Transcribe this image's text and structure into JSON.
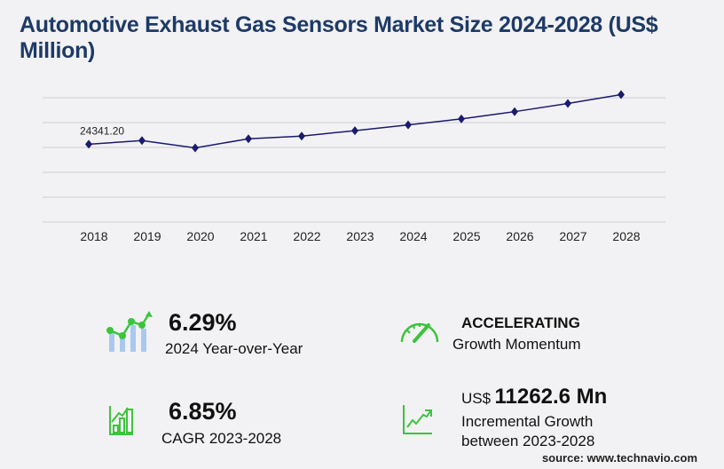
{
  "title": "Automotive Exhaust Gas Sensors Market Size 2024-2028 (US$ Million)",
  "chart_data": {
    "type": "line",
    "title": "Automotive Exhaust Gas Sensors Market Size 2024-2028 (US$ Million)",
    "categories": [
      "2018",
      "2019",
      "2020",
      "2021",
      "2022",
      "2023",
      "2024",
      "2025",
      "2026",
      "2027",
      "2028"
    ],
    "values": [
      24341.2,
      25470,
      23200,
      26040,
      26890,
      28590,
      30390,
      32270,
      34530,
      37080,
      39850
    ],
    "data_labels": [
      {
        "index": 0,
        "text": "24341.20"
      }
    ],
    "ylim": [
      0,
      40000
    ],
    "grid": true,
    "line_color": "#1a1a6e",
    "xlabel": "",
    "ylabel": ""
  },
  "kpis": {
    "yoy": {
      "value": "6.29%",
      "label": "2024 Year-over-Year"
    },
    "momentum": {
      "value": "ACCELERATING",
      "label": "Growth Momentum"
    },
    "cagr": {
      "value": "6.85%",
      "label": "CAGR 2023-2028"
    },
    "incremental": {
      "prefix": "US$",
      "value": "11262.6 Mn",
      "label1": "Incremental Growth",
      "label2": "between 2023-2028"
    }
  },
  "source": "source: www.technavio.com",
  "colors": {
    "accent_green": "#3cc43c",
    "bar_blue": "#a9c8f0",
    "title": "#1e3a66"
  }
}
